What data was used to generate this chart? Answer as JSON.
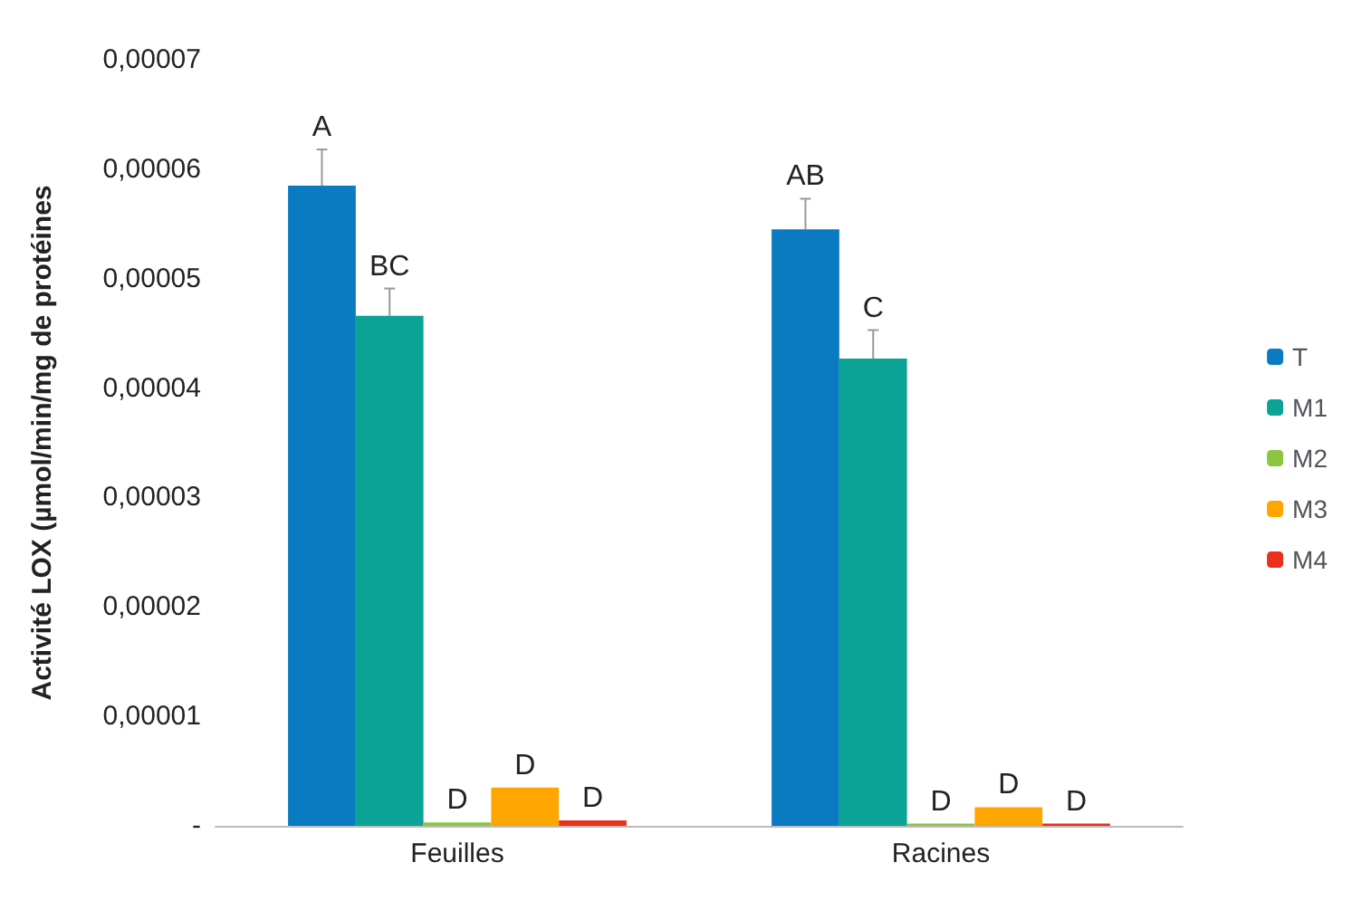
{
  "chart_data": {
    "type": "bar",
    "ylabel": "Activité LOX (µmol/min/mg de protéines",
    "categories": [
      "Feuilles",
      "Racines"
    ],
    "series": [
      {
        "name": "T",
        "color": "#0a7bc1",
        "values": [
          5.85e-05,
          5.45e-05
        ],
        "errors": [
          3.3e-06,
          2.8e-06
        ],
        "value_labels": [
          "A",
          "AB"
        ]
      },
      {
        "name": "M1",
        "color": "#0aa396",
        "values": [
          4.66e-05,
          4.27e-05
        ],
        "errors": [
          2.5e-06,
          2.6e-06
        ],
        "value_labels": [
          "BC",
          "C"
        ]
      },
      {
        "name": "M2",
        "color": "#8cc63f",
        "values": [
          3e-07,
          2e-07
        ],
        "errors": [
          null,
          null
        ],
        "value_labels": [
          "D",
          "D"
        ]
      },
      {
        "name": "M3",
        "color": "#ffa500",
        "values": [
          3.5e-06,
          1.7e-06
        ],
        "errors": [
          null,
          null
        ],
        "value_labels": [
          "D",
          "D"
        ]
      },
      {
        "name": "M4",
        "color": "#e8301c",
        "values": [
          5e-07,
          2e-07
        ],
        "errors": [
          null,
          null
        ],
        "value_labels": [
          "D",
          "D"
        ]
      }
    ],
    "ylim": [
      0,
      7e-05
    ],
    "yticks": [
      {
        "value": 0,
        "label": "-"
      },
      {
        "value": 1e-05,
        "label": "0,00001"
      },
      {
        "value": 2e-05,
        "label": "0,00002"
      },
      {
        "value": 3e-05,
        "label": "0,00003"
      },
      {
        "value": 4e-05,
        "label": "0,00004"
      },
      {
        "value": 5e-05,
        "label": "0,00005"
      },
      {
        "value": 6e-05,
        "label": "0,00006"
      },
      {
        "value": 7e-05,
        "label": "0,00007"
      }
    ],
    "grid": false,
    "legend": "right"
  }
}
